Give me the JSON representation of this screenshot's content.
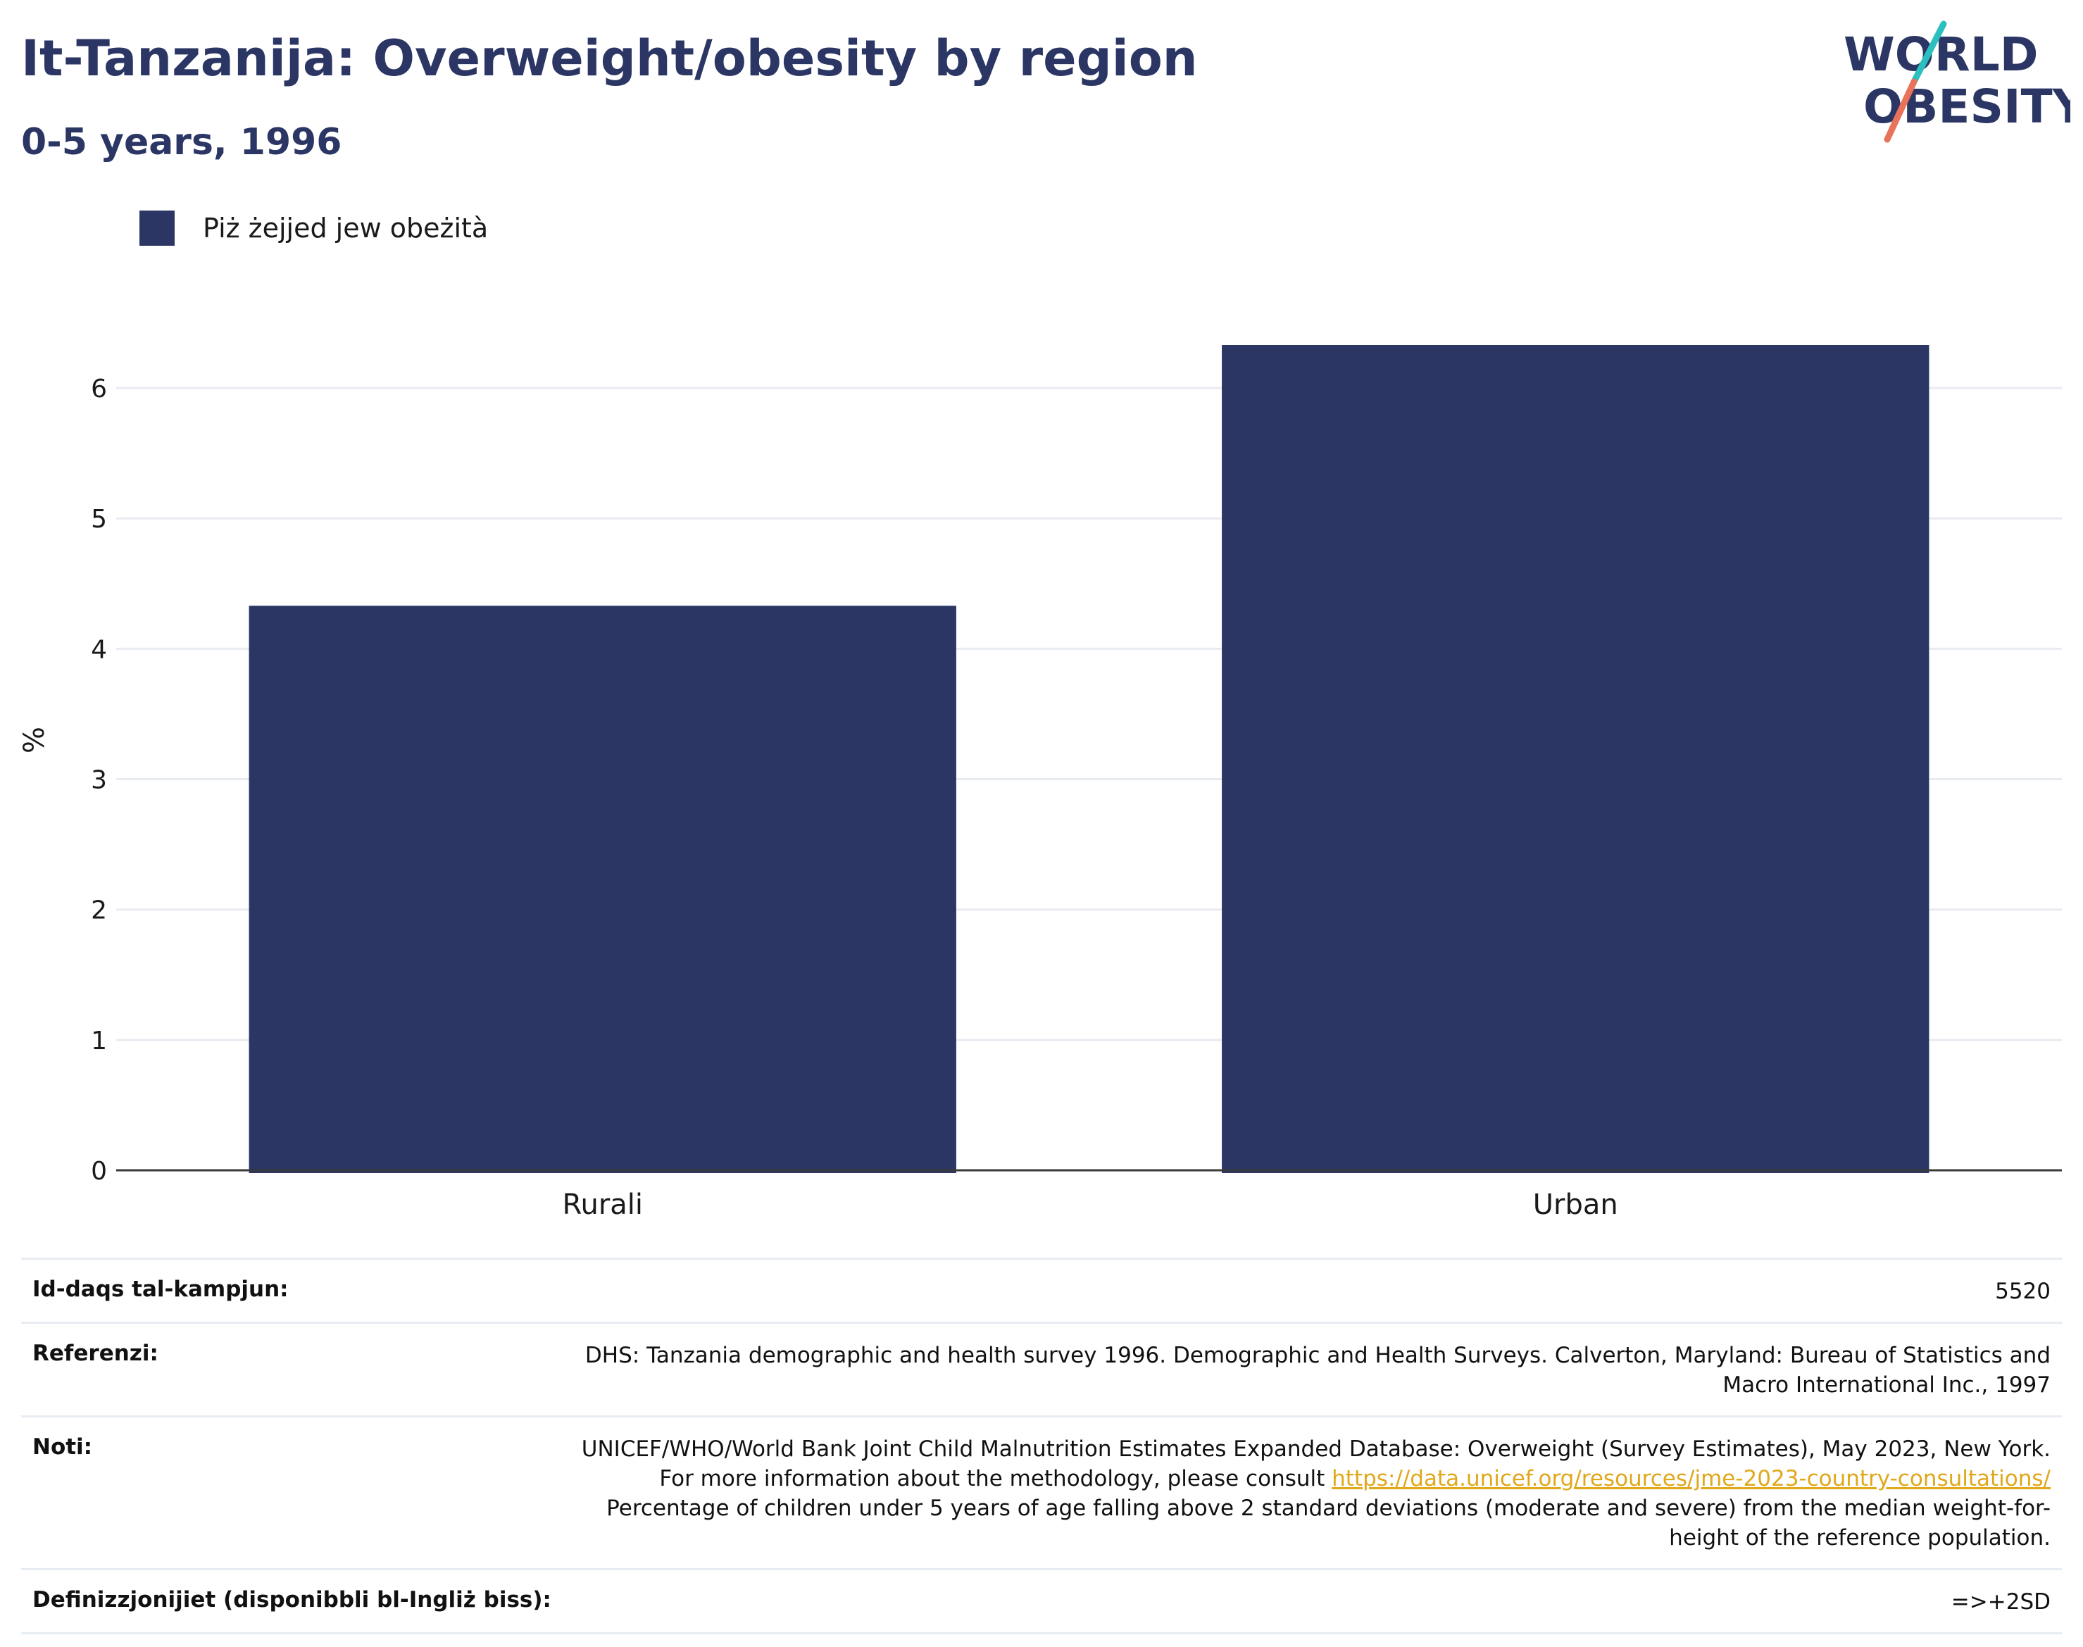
{
  "header": {
    "title": "It-Tanzanija: Overweight/obesity by region",
    "subtitle": "0-5 years, 1996"
  },
  "logo": {
    "line1": "WORLD",
    "line2": "OBESITY"
  },
  "colors": {
    "bar": "#2b3664",
    "title": "#2b3664",
    "link": "#e0a81a",
    "grid": "#e8ebf0",
    "logo_teal": "#2bbfbf",
    "logo_coral": "#e8735a"
  },
  "chart_data": {
    "type": "bar",
    "categories": [
      "Rurali",
      "Urban"
    ],
    "series": [
      {
        "name": "Piż żejjed jew obeżità",
        "values": [
          4.33,
          6.33
        ]
      }
    ],
    "ylabel": "%",
    "xlabel": "",
    "ylim": [
      0,
      6.6
    ],
    "yticks": [
      0,
      1,
      2,
      3,
      4,
      5,
      6
    ],
    "grid": true,
    "legend": "top-left"
  },
  "meta": {
    "sample_size_label": "Id-daqs tal-kampjun:",
    "sample_size_value": "5520",
    "references_label": "Referenzi:",
    "references_value": "DHS: Tanzania demographic and health survey 1996. Demographic and Health Surveys. Calverton, Maryland: Bureau of Statistics and Macro International Inc., 1997",
    "notes_label": "Noti:",
    "notes_text_1": "UNICEF/WHO/World Bank Joint Child Malnutrition Estimates Expanded Database: Overweight (Survey Estimates), May 2023, New York. For more information about the methodology, please consult",
    "notes_link": "https://data.unicef.org/resources/jme-2023-country-consultations/",
    "notes_text_2": "Percentage of children under 5 years of age falling above 2 standard deviations (moderate and severe) from the median weight-for-height of the reference population.",
    "definitions_label": "Definizzjonijiet (disponibbli bl-Ingliż biss):",
    "definitions_value": "=>+2SD"
  }
}
